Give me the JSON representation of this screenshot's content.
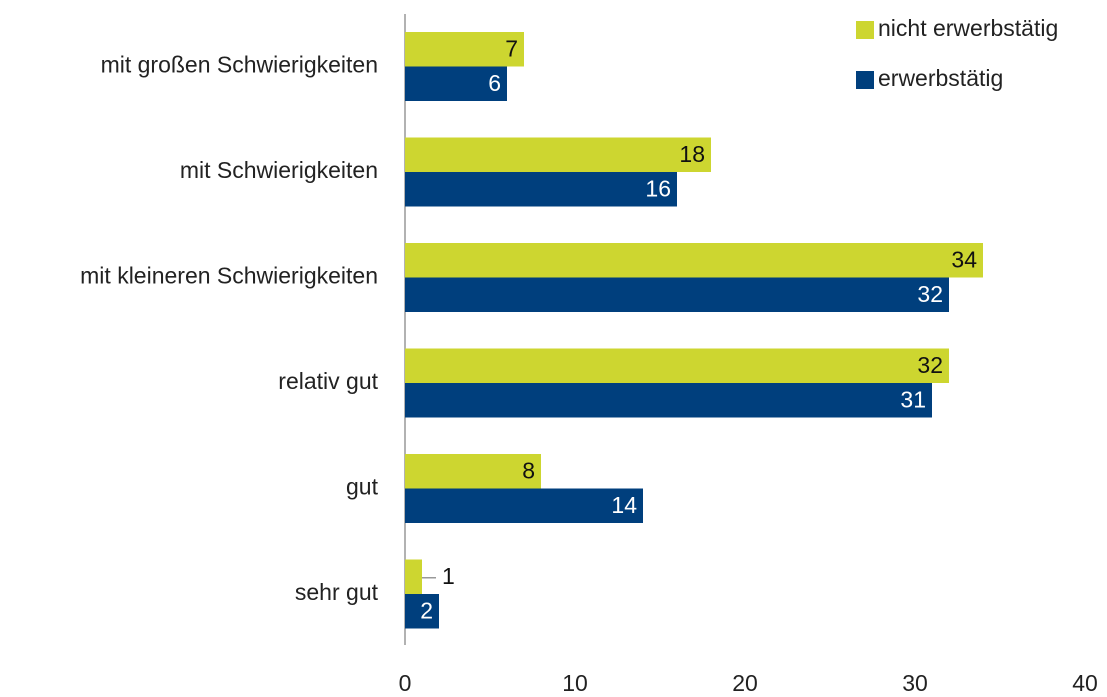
{
  "chart_data": {
    "type": "bar",
    "orientation": "horizontal",
    "categories": [
      "mit großen Schwierigkeiten",
      "mit Schwierigkeiten",
      "mit kleineren Schwierigkeiten",
      "relativ gut",
      "gut",
      "sehr gut"
    ],
    "series": [
      {
        "name": "nicht erwerbstätig",
        "color": "#cdd630",
        "values": [
          7,
          18,
          34,
          32,
          8,
          1
        ]
      },
      {
        "name": "erwerbstätig",
        "color": "#003f7d",
        "values": [
          6,
          16,
          32,
          31,
          14,
          2
        ]
      }
    ],
    "xlim": [
      0,
      40
    ],
    "xticks": [
      0,
      10,
      20,
      30,
      40
    ],
    "grid": false,
    "legend": "top-right"
  }
}
